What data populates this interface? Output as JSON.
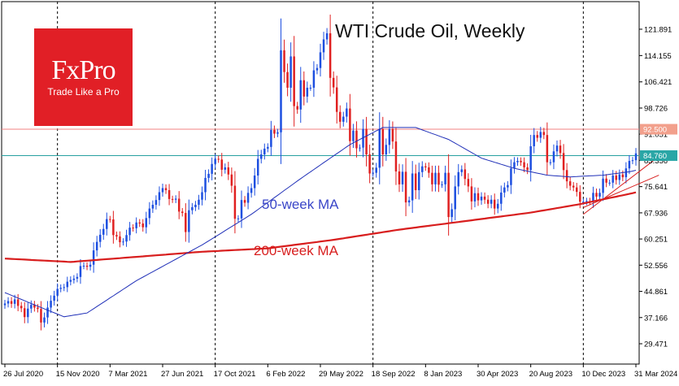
{
  "logo": {
    "brand": "FxPro",
    "tagline": "Trade Like a Pro",
    "color": "#e11f26"
  },
  "chart_data": {
    "type": "candlestick",
    "title": "WTI Crude Oil, Weekly",
    "annotations": [
      {
        "text": "50-week MA",
        "color": "#3a46c8"
      },
      {
        "text": "200-week MA",
        "color": "#d81e1e"
      }
    ],
    "y_ticks": [
      "121.891",
      "114.155",
      "106.421",
      "98.726",
      "91.051",
      "83.356",
      "75.641",
      "67.936",
      "60.251",
      "52.556",
      "44.861",
      "37.166",
      "29.471"
    ],
    "ylim": [
      23.5,
      130.0
    ],
    "x_ticks": [
      "26 Jul 2020",
      "15 Nov 2020",
      "7 Mar 2021",
      "27 Jun 2021",
      "17 Oct 2021",
      "6 Feb 2022",
      "29 May 2022",
      "18 Sep 2022",
      "8 Jan 2023",
      "30 Apr 2023",
      "20 Aug 2023",
      "10 Dec 2023",
      "31 Mar 2024"
    ],
    "period_grid_labels": [
      "15 Nov 2020",
      "17 Oct 2021",
      "18 Sep 2022",
      "10 Dec 2023"
    ],
    "price_labels": [
      {
        "text": "92.500",
        "value": 92.5,
        "box": "#f2a08c",
        "line": "#f08080"
      },
      {
        "text": "84.760",
        "value": 84.76,
        "box": "#2aa6a6",
        "line": "#28a0a0"
      }
    ],
    "weekly_close": [
      41.3,
      42.0,
      41.2,
      42.5,
      40.6,
      39.9,
      37.3,
      39.8,
      40.9,
      40.1,
      39.7,
      35.7,
      37.2,
      40.1,
      42.1,
      43.6,
      45.6,
      45.9,
      46.1,
      47.7,
      48.2,
      48.6,
      49.1,
      52.3,
      52.4,
      52.1,
      52.7,
      56.9,
      59.4,
      61.5,
      63.2,
      66.1,
      66.0,
      61.4,
      61.0,
      59.3,
      59.5,
      61.4,
      63.6,
      63.4,
      65.1,
      64.8,
      63.7,
      66.4,
      69.2,
      70.3,
      71.7,
      74.0,
      75.2,
      74.6,
      72.0,
      71.8,
      72.1,
      68.3,
      67.9,
      62.3,
      68.7,
      69.6,
      70.3,
      71.8,
      74.0,
      78.2,
      79.4,
      82.3,
      83.8,
      83.6,
      80.6,
      81.3,
      79.2,
      75.9,
      66.2,
      66.3,
      71.7,
      70.9,
      73.8,
      75.2,
      78.9,
      83.8,
      85.1,
      86.8,
      87.3,
      92.3,
      91.2,
      91.6,
      115.7,
      109.3,
      104.7,
      113.9,
      99.3,
      98.3,
      106.9,
      102.1,
      104.7,
      104.7,
      109.8,
      110.5,
      115.1,
      118.9,
      120.7,
      107.6,
      104.8,
      97.6,
      94.7,
      96.2,
      98.6,
      89.0,
      92.1,
      86.9,
      87.1,
      92.6,
      85.1,
      79.5,
      79.7,
      81.2,
      92.6,
      85.1,
      87.9,
      92.6,
      88.9,
      80.1,
      76.3,
      80.0,
      71.0,
      71.6,
      79.5,
      74.6,
      79.9,
      81.6,
      81.3,
      79.7,
      76.3,
      79.7,
      76.2,
      76.3,
      79.7,
      66.7,
      69.0,
      75.7,
      79.9,
      80.7,
      77.9,
      75.7,
      71.3,
      73.7,
      71.6,
      72.7,
      71.8,
      70.6,
      71.8,
      69.2,
      70.6,
      73.9,
      75.4,
      76.1,
      81.0,
      82.8,
      83.2,
      82.8,
      81.3,
      80.5,
      87.5,
      90.8,
      90.0,
      91.7,
      90.8,
      82.8,
      82.8,
      86.0,
      87.7,
      85.5,
      80.5,
      77.2,
      75.9,
      75.4,
      74.1,
      71.2,
      71.2,
      71.4,
      71.2,
      73.8,
      72.7,
      73.8,
      78.0,
      76.8,
      76.8,
      78.9,
      77.6,
      79.2,
      78.4,
      81.0,
      83.2,
      83.4,
      85.4
    ],
    "ma50_points": [
      [
        0,
        44.5
      ],
      [
        10,
        40.5
      ],
      [
        18,
        37.4
      ],
      [
        25,
        38.5
      ],
      [
        40,
        48.0
      ],
      [
        60,
        58.5
      ],
      [
        75,
        67.5
      ],
      [
        90,
        78.0
      ],
      [
        105,
        88.0
      ],
      [
        115,
        93.0
      ],
      [
        125,
        93.0
      ],
      [
        135,
        89.5
      ],
      [
        145,
        84.0
      ],
      [
        155,
        81.0
      ],
      [
        165,
        79.0
      ],
      [
        172,
        78.5
      ],
      [
        182,
        79.0
      ],
      [
        190,
        80.0
      ],
      [
        199,
        82.0
      ]
    ],
    "ma200_points": [
      [
        0,
        54.5
      ],
      [
        20,
        53.5
      ],
      [
        40,
        55.0
      ],
      [
        60,
        56.5
      ],
      [
        80,
        57.5
      ],
      [
        100,
        60.0
      ],
      [
        120,
        63.0
      ],
      [
        140,
        65.5
      ],
      [
        160,
        68.0
      ],
      [
        175,
        70.5
      ],
      [
        190,
        73.5
      ],
      [
        199,
        75.5
      ]
    ],
    "trendlines": [
      {
        "from": [
          176,
          69.5
        ],
        "to": [
          199,
          79.0
        ]
      },
      {
        "from": [
          176,
          67.5
        ],
        "to": [
          199,
          84.5
        ]
      }
    ]
  }
}
